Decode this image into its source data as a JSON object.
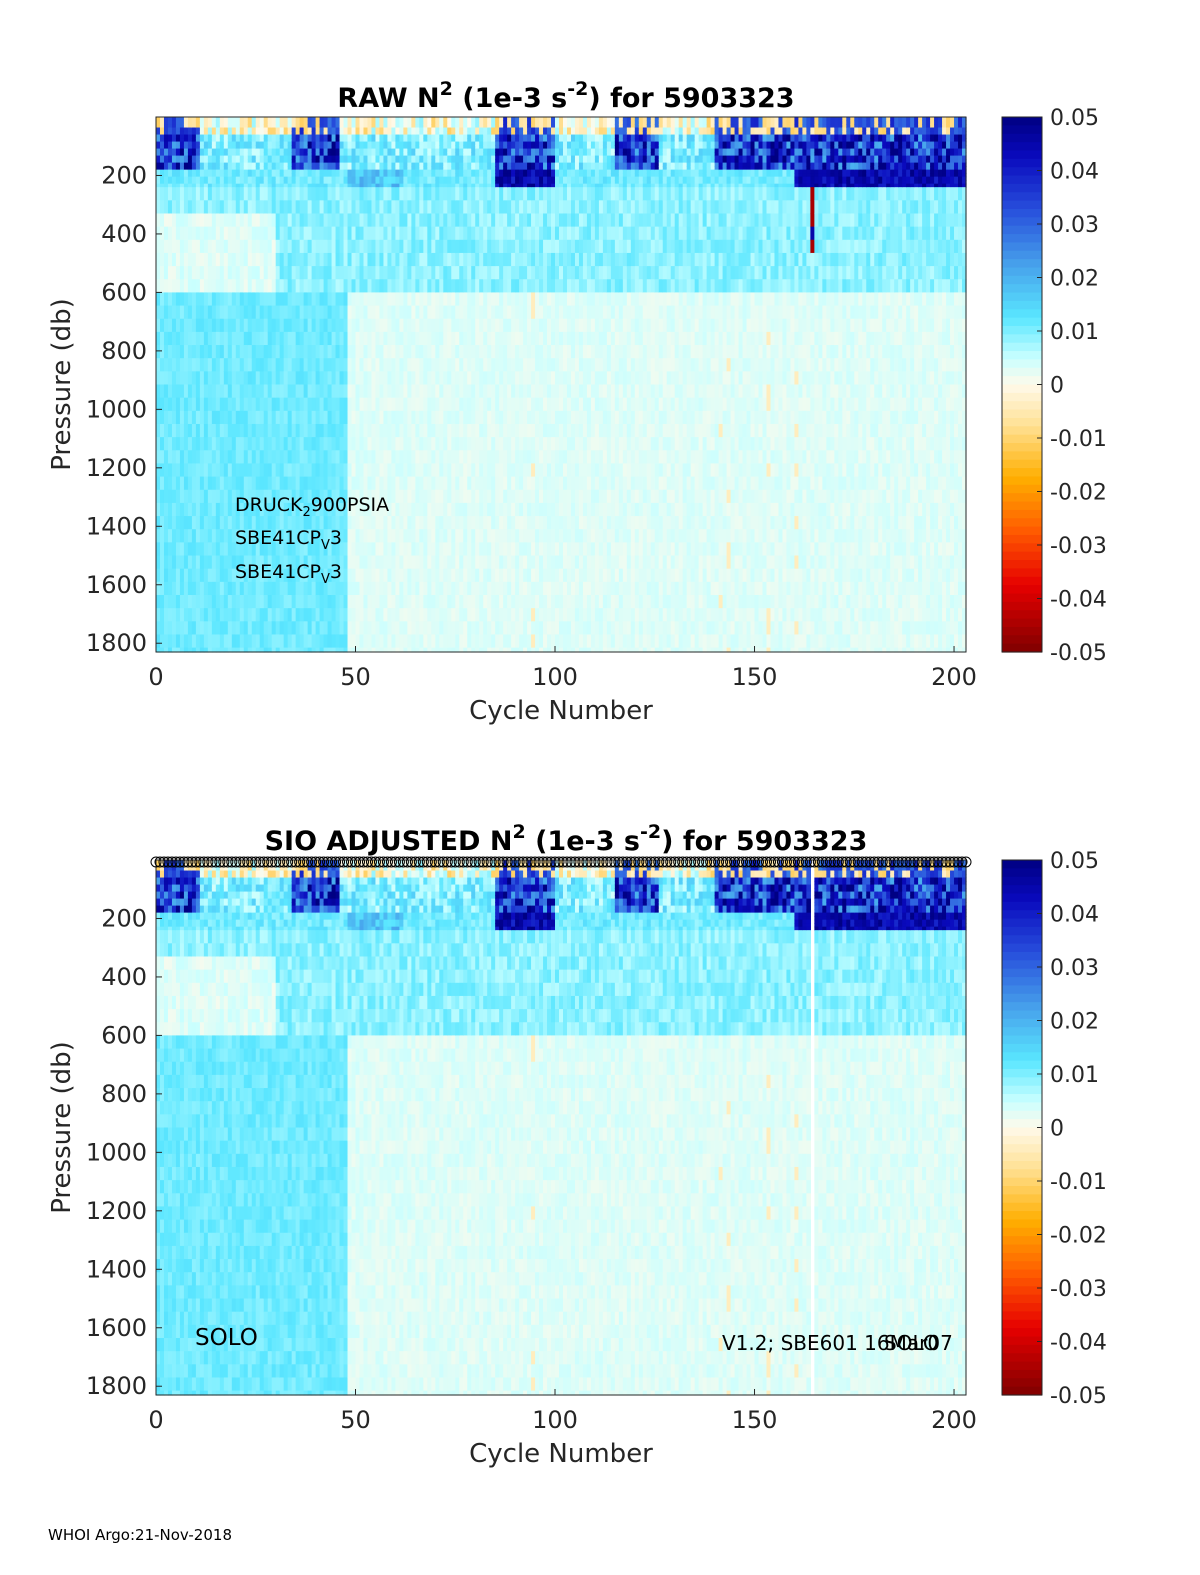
{
  "chart_data": [
    {
      "type": "heatmap",
      "title_prefix": "RAW N",
      "title_sup1": "2",
      "title_mid": " (1e-3 s",
      "title_sup2": "-2",
      "title_suffix": ") for 5903323",
      "xlabel": "Cycle Number",
      "ylabel": "Pressure (db)",
      "xlim": [
        0,
        203
      ],
      "ylim": [
        1830,
        0
      ],
      "xticks": [
        0,
        50,
        100,
        150,
        200
      ],
      "yticks": [
        200,
        400,
        600,
        800,
        1000,
        1200,
        1400,
        1600,
        1800
      ],
      "colorbar": {
        "range": [
          -0.05,
          0.05
        ],
        "ticks": [
          "0.05",
          "0.04",
          "0.03",
          "0.02",
          "0.01",
          "0",
          "-0.01",
          "-0.02",
          "-0.03",
          "-0.04",
          "-0.05"
        ]
      },
      "field_summary": {
        "surface_0_to_170db": "strong positive 0.03-0.05 at cycles 0-10, 35-45, 85-100, 115-125, 140-203",
        "thermocline_170_to_240db": "0.04-0.05 band at cycles 85-100 and 160-203",
        "mid_200_to_600db": "0.005-0.01",
        "deep_600_to_1830db": "0.008-0.012 for cycles 0-48, 0.001-0.003 for cycles 48-203",
        "outlier_cycle": 164
      },
      "annotations": [
        {
          "main": "DRUCK",
          "sub": "2",
          "rest": "900PSIA"
        },
        {
          "main": "SBE41CP",
          "sub": "V",
          "rest": "3"
        },
        {
          "main": "SBE41CP",
          "sub": "V",
          "rest": "3"
        }
      ]
    },
    {
      "type": "heatmap",
      "title_prefix": "SIO  ADJUSTED N",
      "title_sup1": "2",
      "title_mid": " (1e-3 s",
      "title_sup2": "-2",
      "title_suffix": ") for 5903323",
      "xlabel": "Cycle Number",
      "ylabel": "Pressure (db)",
      "xlim": [
        0,
        203
      ],
      "ylim": [
        1830,
        0
      ],
      "xticks": [
        0,
        50,
        100,
        150,
        200
      ],
      "yticks": [
        200,
        400,
        600,
        800,
        1000,
        1200,
        1400,
        1600,
        1800
      ],
      "colorbar": {
        "range": [
          -0.05,
          0.05
        ],
        "ticks": [
          "0.05",
          "0.04",
          "0.03",
          "0.02",
          "0.01",
          "0",
          "-0.01",
          "-0.02",
          "-0.03",
          "-0.04",
          "-0.05"
        ]
      },
      "qc_flag_row": "open circle per cycle at top edge",
      "missing_cycle": 164,
      "label_left": "SOLO",
      "label_right_a": "V1.2; SBE601 16Mar07",
      "label_right_b": "SOLO"
    }
  ],
  "footer": "WHOI Argo:21-Nov-2018"
}
